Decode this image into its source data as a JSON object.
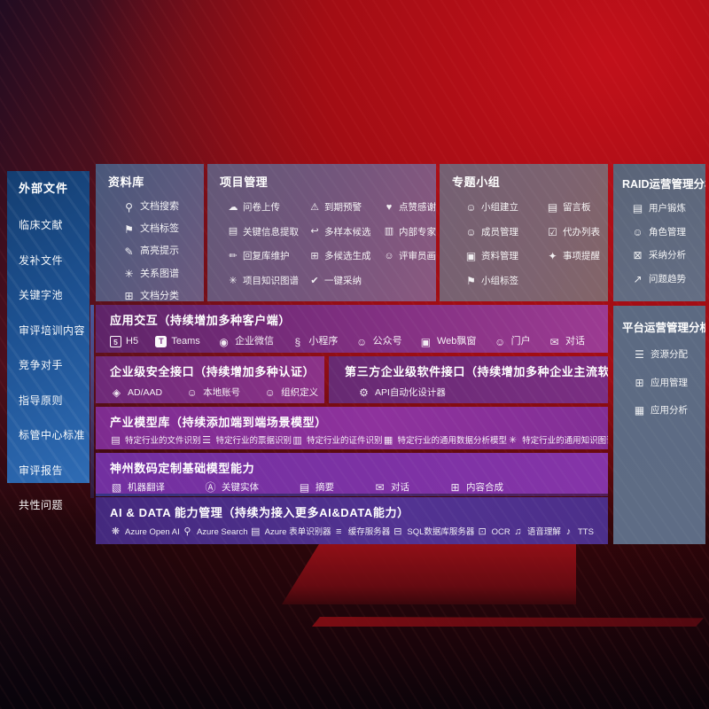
{
  "colors": {
    "background_red": "#a80e13",
    "background_dark": "#160609",
    "sidebar_blue": "#1d5191",
    "slate_panel": "#5c6a82",
    "purple_row": "#7c2e7e",
    "magenta_row": "#8e329d",
    "violet_row": "#8534a8",
    "indigo_row": "#44297e",
    "text": "#ffffff"
  },
  "sidebar": {
    "title": "外部文件",
    "items": [
      "临床文献",
      "发补文件",
      "关键字池",
      "审评培训内容",
      "竞争对手",
      "指导原则",
      "标管中心标准",
      "审评报告",
      "共性问题"
    ]
  },
  "panels": {
    "library": {
      "title": "资料库",
      "items": [
        {
          "name": "doc-search",
          "glyph": "⚲",
          "label": "文档搜索"
        },
        {
          "name": "doc-tag",
          "glyph": "⚑",
          "label": "文档标签"
        },
        {
          "name": "highlight-tip",
          "glyph": "✎",
          "label": "高亮提示"
        },
        {
          "name": "relation-graph",
          "glyph": "✳",
          "label": "关系图谱"
        },
        {
          "name": "doc-classify",
          "glyph": "⊞",
          "label": "文档分类"
        }
      ]
    },
    "project": {
      "title": "项目管理",
      "items": [
        {
          "name": "questionnaire-upload",
          "glyph": "☁",
          "label": "问卷上传"
        },
        {
          "name": "due-warning",
          "glyph": "⚠",
          "label": "到期预警"
        },
        {
          "name": "like-thanks",
          "glyph": "♥",
          "label": "点赞感谢"
        },
        {
          "name": "key-info-extract",
          "glyph": "▤",
          "label": "关键信息提取"
        },
        {
          "name": "multi-sample-candidate",
          "glyph": "↩",
          "label": "多样本候选"
        },
        {
          "name": "internal-expert-rank",
          "glyph": "▥",
          "label": "内部专家排名"
        },
        {
          "name": "reply-lib-maintain",
          "glyph": "✏",
          "label": "回复库维护"
        },
        {
          "name": "multi-candidate-generate",
          "glyph": "⊞",
          "label": "多候选生成"
        },
        {
          "name": "reviewer-profile",
          "glyph": "☺",
          "label": "评审员画像"
        },
        {
          "name": "project-knowledge-graph",
          "glyph": "✳",
          "label": "项目知识图谱"
        },
        {
          "name": "one-click-adopt",
          "glyph": "✔",
          "label": "一键采纳"
        }
      ]
    },
    "group": {
      "title": "专题小组",
      "items": [
        {
          "name": "group-create",
          "glyph": "☺",
          "label": "小组建立"
        },
        {
          "name": "message-board",
          "glyph": "▤",
          "label": "留言板"
        },
        {
          "name": "member-manage",
          "glyph": "☺",
          "label": "成员管理"
        },
        {
          "name": "todo-list",
          "glyph": "☑",
          "label": "代办列表"
        },
        {
          "name": "material-manage",
          "glyph": "▣",
          "label": "资料管理"
        },
        {
          "name": "reminder-bell",
          "glyph": "✦",
          "label": "事项提醒"
        },
        {
          "name": "group-tag",
          "glyph": "⚑",
          "label": "小组标签"
        }
      ]
    },
    "raid": {
      "title": "RAID运营管理分析",
      "items": [
        {
          "name": "user-card",
          "glyph": "▤",
          "label": "用户锻炼"
        },
        {
          "name": "role-manage",
          "glyph": "☺",
          "label": "角色管理"
        },
        {
          "name": "adoption-analysis",
          "glyph": "⊠",
          "label": "采纳分析"
        },
        {
          "name": "issue-trend",
          "glyph": "↗",
          "label": "问题趋势"
        }
      ]
    },
    "platform": {
      "title": "平台运营管理分析",
      "items": [
        {
          "name": "resource-allocation",
          "glyph": "☰",
          "label": "资源分配"
        },
        {
          "name": "app-manage",
          "glyph": "⊞",
          "label": "应用管理"
        },
        {
          "name": "app-analysis",
          "glyph": "▦",
          "label": "应用分析"
        }
      ]
    },
    "interaction": {
      "title": "应用交互（持续增加多种客户端）",
      "items": [
        {
          "name": "h5-client",
          "glyph": "5",
          "label": "H5"
        },
        {
          "name": "teams",
          "glyph": "T",
          "label": "Teams"
        },
        {
          "name": "wecom",
          "glyph": "◉",
          "label": "企业微信"
        },
        {
          "name": "mini-program",
          "glyph": "§",
          "label": "小程序"
        },
        {
          "name": "official-account",
          "glyph": "☺",
          "label": "公众号"
        },
        {
          "name": "web-popup",
          "glyph": "▣",
          "label": "Web飘窗"
        },
        {
          "name": "portal",
          "glyph": "☺",
          "label": "门户"
        },
        {
          "name": "dialog-client",
          "glyph": "✉",
          "label": "对话"
        }
      ]
    },
    "security": {
      "title": "企业级安全接口（持续增加多种认证）",
      "items": [
        {
          "name": "ad-aad",
          "glyph": "◈",
          "label": "AD/AAD"
        },
        {
          "name": "local-account",
          "glyph": "☺",
          "label": "本地账号"
        },
        {
          "name": "org-define",
          "glyph": "☺",
          "label": "组织定义"
        }
      ]
    },
    "thirdparty": {
      "title": "第三方企业级软件接口（持续增加多种企业主流软件接口）",
      "items": [
        {
          "name": "api-auto-designer",
          "glyph": "⚙",
          "label": "API自动化设计器"
        }
      ]
    },
    "models": {
      "title": "产业模型库（持续添加端到端场景模型）",
      "items": [
        {
          "name": "industry-file-recognition",
          "glyph": "▤",
          "label": "特定行业的文件识别"
        },
        {
          "name": "industry-receipt-recognition",
          "glyph": "☰",
          "label": "特定行业的票据识别"
        },
        {
          "name": "industry-id-recognition",
          "glyph": "▥",
          "label": "特定行业的证件识别"
        },
        {
          "name": "industry-data-analysis-model",
          "glyph": "▦",
          "label": "特定行业的通用数据分析模型"
        },
        {
          "name": "industry-knowledge-graph-model",
          "glyph": "✳",
          "label": "特定行业的通用知识图谱模型"
        }
      ]
    },
    "base_models": {
      "title": "神州数码定制基础模型能力",
      "items": [
        {
          "name": "machine-translation",
          "glyph": "▧",
          "label": "机器翻译"
        },
        {
          "name": "key-entity",
          "glyph": "Ⓐ",
          "label": "关键实体"
        },
        {
          "name": "summary",
          "glyph": "▤",
          "label": "摘要"
        },
        {
          "name": "dialog-capability",
          "glyph": "✉",
          "label": "对话"
        },
        {
          "name": "content-compose",
          "glyph": "⊞",
          "label": "内容合成"
        }
      ]
    },
    "ai_data": {
      "title": "AI & DATA 能力管理（持续为接入更多AI&DATA能力）",
      "items": [
        {
          "name": "azure-open-ai",
          "glyph": "❋",
          "label": "Azure Open AI"
        },
        {
          "name": "azure-search",
          "glyph": "⚲",
          "label": "Azure Search"
        },
        {
          "name": "azure-form-recognizer",
          "glyph": "▤",
          "label": "Azure 表单识别器"
        },
        {
          "name": "cache-server",
          "glyph": "≡",
          "label": "缓存服务器"
        },
        {
          "name": "sql-db-server",
          "glyph": "⊟",
          "label": "SQL数据库服务器"
        },
        {
          "name": "ocr",
          "glyph": "⊡",
          "label": "OCR"
        },
        {
          "name": "speech-understanding",
          "glyph": "♫",
          "label": "语音理解"
        },
        {
          "name": "tts",
          "glyph": "♪",
          "label": "TTS"
        }
      ]
    }
  }
}
